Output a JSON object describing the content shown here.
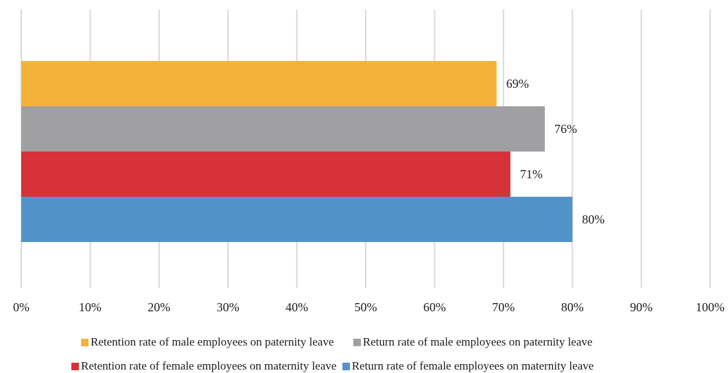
{
  "chart_data": {
    "type": "bar",
    "orientation": "horizontal",
    "title": "",
    "xlabel": "",
    "ylabel": "",
    "xlim": [
      0,
      100
    ],
    "x_ticks": [
      "0%",
      "10%",
      "20%",
      "30%",
      "40%",
      "50%",
      "60%",
      "70%",
      "80%",
      "90%",
      "100%"
    ],
    "grid": "vertical",
    "legend_position": "bottom",
    "series": [
      {
        "name": "Retention rate of male employees on paternity leave",
        "value": 69,
        "label": "69%",
        "color": "#F4B23A"
      },
      {
        "name": "Return rate of male employees on paternity leave",
        "value": 76,
        "label": "76%",
        "color": "#A0A0A3"
      },
      {
        "name": "Retention rate of female employees on maternity leave",
        "value": 71,
        "label": "71%",
        "color": "#D63237"
      },
      {
        "name": "Return rate of female employees on maternity leave",
        "value": 80,
        "label": "80%",
        "color": "#5293C9"
      }
    ]
  }
}
